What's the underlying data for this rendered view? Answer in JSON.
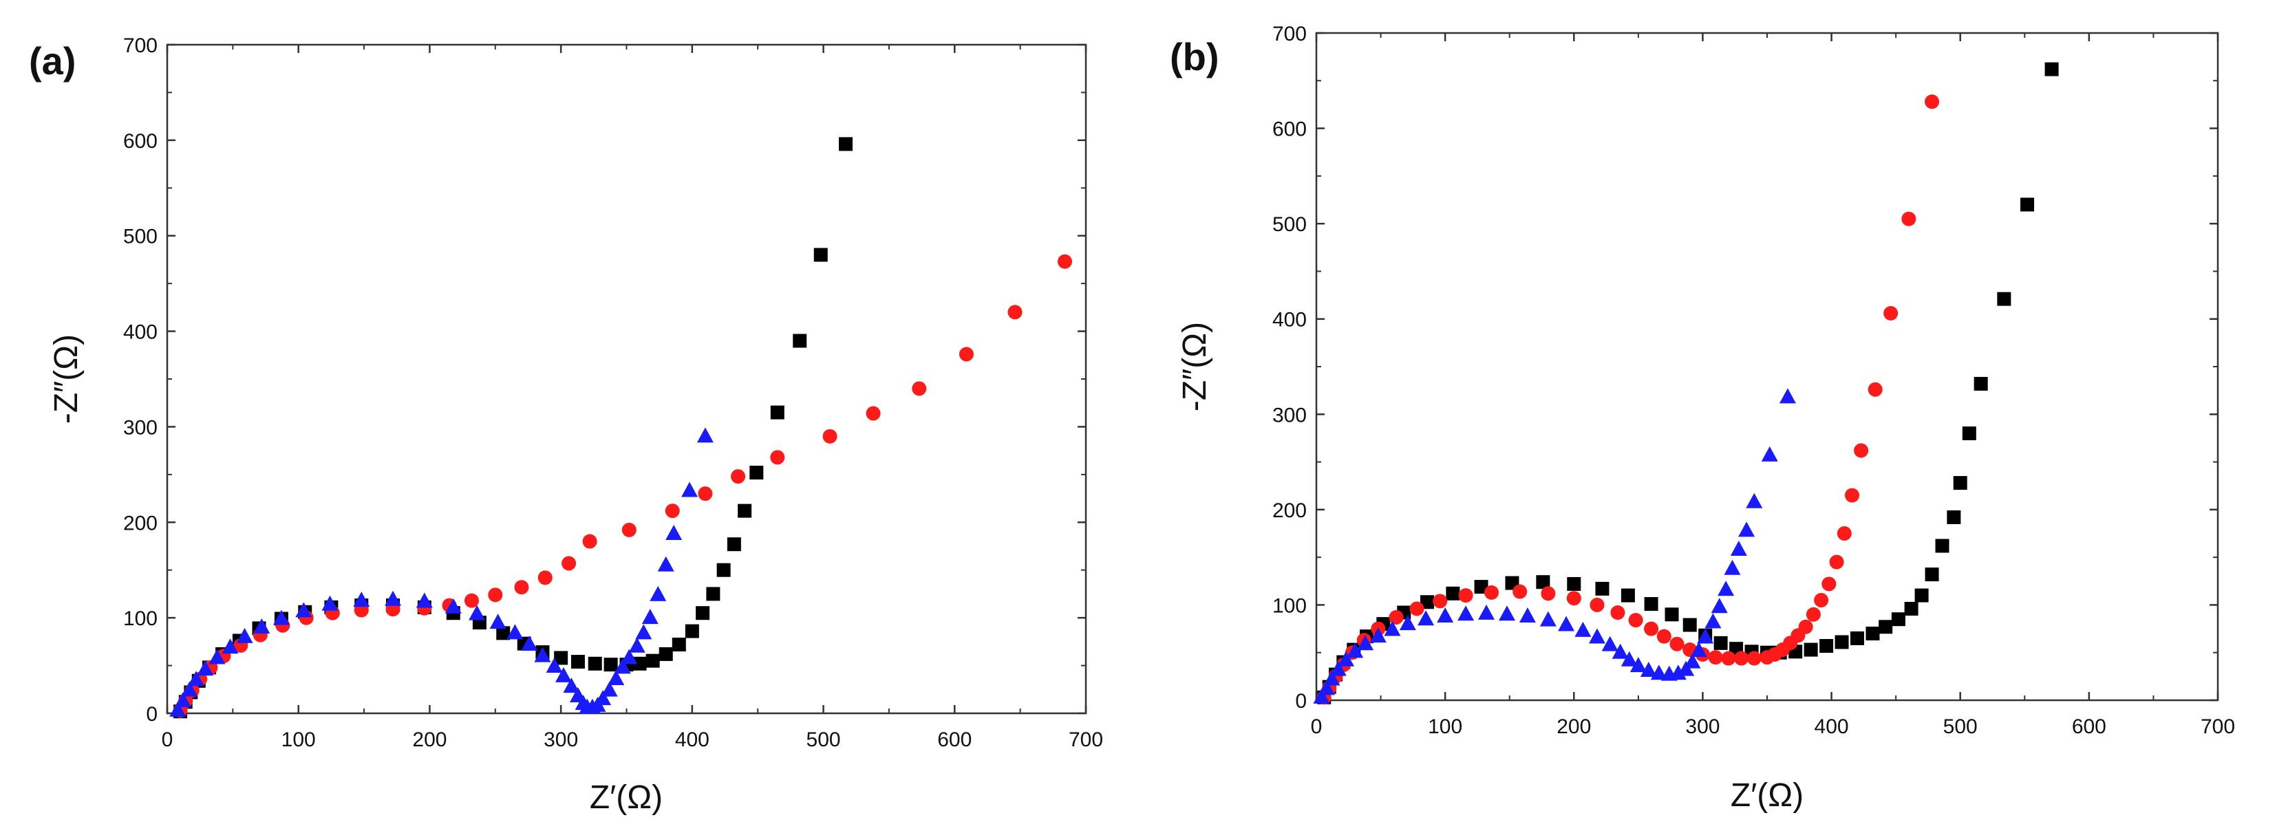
{
  "chart_data": [
    {
      "type": "scatter",
      "panel_label": "(a)",
      "xlabel": "Z′(Ω)",
      "ylabel": "-Z″(Ω)",
      "xlim": [
        0,
        700
      ],
      "ylim": [
        0,
        700
      ],
      "xticks": [
        0,
        100,
        200,
        300,
        400,
        500,
        600,
        700
      ],
      "yticks": [
        0,
        100,
        200,
        300,
        400,
        500,
        600,
        700
      ],
      "series": [
        {
          "name": "black-squares",
          "color": "#000000",
          "marker": "square",
          "points": [
            [
              10,
              2
            ],
            [
              14,
              12
            ],
            [
              18,
              22
            ],
            [
              24,
              34
            ],
            [
              32,
              48
            ],
            [
              42,
              62
            ],
            [
              55,
              76
            ],
            [
              70,
              89
            ],
            [
              87,
              99
            ],
            [
              105,
              106
            ],
            [
              125,
              111
            ],
            [
              148,
              113
            ],
            [
              172,
              113
            ],
            [
              196,
              111
            ],
            [
              218,
              105
            ],
            [
              238,
              95
            ],
            [
              256,
              84
            ],
            [
              272,
              73
            ],
            [
              286,
              64
            ],
            [
              300,
              58
            ],
            [
              313,
              54
            ],
            [
              326,
              52
            ],
            [
              338,
              51
            ],
            [
              350,
              51
            ],
            [
              360,
              52
            ],
            [
              370,
              55
            ],
            [
              380,
              62
            ],
            [
              390,
              72
            ],
            [
              400,
              86
            ],
            [
              408,
              105
            ],
            [
              416,
              125
            ],
            [
              424,
              150
            ],
            [
              432,
              177
            ],
            [
              440,
              212
            ],
            [
              449,
              252
            ],
            [
              465,
              315
            ],
            [
              482,
              390
            ],
            [
              498,
              480
            ],
            [
              517,
              596
            ]
          ]
        },
        {
          "name": "red-circles",
          "color": "#ff1a1a",
          "marker": "circle",
          "points": [
            [
              10,
              3
            ],
            [
              14,
              13
            ],
            [
              19,
              24
            ],
            [
              25,
              36
            ],
            [
              33,
              48
            ],
            [
              43,
              60
            ],
            [
              56,
              71
            ],
            [
              71,
              82
            ],
            [
              88,
              92
            ],
            [
              106,
              100
            ],
            [
              126,
              105
            ],
            [
              148,
              108
            ],
            [
              172,
              109
            ],
            [
              196,
              110
            ],
            [
              215,
              113
            ],
            [
              232,
              118
            ],
            [
              250,
              124
            ],
            [
              270,
              132
            ],
            [
              288,
              142
            ],
            [
              306,
              157
            ],
            [
              322,
              180
            ],
            [
              352,
              192
            ],
            [
              385,
              212
            ],
            [
              410,
              230
            ],
            [
              435,
              248
            ],
            [
              465,
              268
            ],
            [
              505,
              290
            ],
            [
              538,
              314
            ],
            [
              573,
              340
            ],
            [
              609,
              376
            ],
            [
              646,
              420
            ],
            [
              684,
              473
            ]
          ]
        },
        {
          "name": "blue-triangles",
          "color": "#1a1aff",
          "marker": "triangle",
          "points": [
            [
              8,
              3
            ],
            [
              12,
              13
            ],
            [
              17,
              24
            ],
            [
              22,
              35
            ],
            [
              29,
              46
            ],
            [
              38,
              58
            ],
            [
              48,
              69
            ],
            [
              59,
              80
            ],
            [
              72,
              90
            ],
            [
              87,
              99
            ],
            [
              104,
              107
            ],
            [
              124,
              114
            ],
            [
              148,
              118
            ],
            [
              172,
              119
            ],
            [
              196,
              117
            ],
            [
              218,
              111
            ],
            [
              236,
              104
            ],
            [
              252,
              95
            ],
            [
              265,
              84
            ],
            [
              276,
              72
            ],
            [
              286,
              60
            ],
            [
              295,
              49
            ],
            [
              302,
              39
            ],
            [
              308,
              28
            ],
            [
              313,
              18
            ],
            [
              317,
              10
            ],
            [
              320,
              6
            ],
            [
              324,
              6
            ],
            [
              328,
              8
            ],
            [
              332,
              15
            ],
            [
              337,
              24
            ],
            [
              342,
              36
            ],
            [
              347,
              48
            ],
            [
              352,
              58
            ],
            [
              358,
              70
            ],
            [
              363,
              84
            ],
            [
              368,
              100
            ],
            [
              374,
              124
            ],
            [
              380,
              155
            ],
            [
              386,
              188
            ],
            [
              398,
              233
            ],
            [
              410,
              290
            ]
          ]
        }
      ]
    },
    {
      "type": "scatter",
      "panel_label": "(b)",
      "xlabel": "Z′(Ω)",
      "ylabel": "-Z″(Ω)",
      "xlim": [
        0,
        700
      ],
      "ylim": [
        0,
        700
      ],
      "xticks": [
        0,
        100,
        200,
        300,
        400,
        500,
        600,
        700
      ],
      "yticks": [
        0,
        100,
        200,
        300,
        400,
        500,
        600,
        700
      ],
      "series": [
        {
          "name": "black-squares",
          "color": "#000000",
          "marker": "square",
          "points": [
            [
              6,
              3
            ],
            [
              10,
              14
            ],
            [
              15,
              27
            ],
            [
              21,
              40
            ],
            [
              29,
              53
            ],
            [
              39,
              67
            ],
            [
              52,
              80
            ],
            [
              68,
              92
            ],
            [
              86,
              103
            ],
            [
              106,
              112
            ],
            [
              128,
              119
            ],
            [
              152,
              123
            ],
            [
              176,
              124
            ],
            [
              200,
              122
            ],
            [
              222,
              117
            ],
            [
              242,
              110
            ],
            [
              260,
              101
            ],
            [
              276,
              90
            ],
            [
              290,
              79
            ],
            [
              302,
              68
            ],
            [
              314,
              60
            ],
            [
              326,
              54
            ],
            [
              338,
              51
            ],
            [
              350,
              50
            ],
            [
              360,
              50
            ],
            [
              372,
              51
            ],
            [
              384,
              53
            ],
            [
              396,
              57
            ],
            [
              408,
              61
            ],
            [
              420,
              65
            ],
            [
              432,
              70
            ],
            [
              442,
              77
            ],
            [
              452,
              85
            ],
            [
              462,
              96
            ],
            [
              470,
              110
            ],
            [
              478,
              132
            ],
            [
              486,
              162
            ],
            [
              495,
              192
            ],
            [
              500,
              228
            ],
            [
              507,
              280
            ],
            [
              516,
              332
            ],
            [
              534,
              421
            ],
            [
              552,
              520
            ],
            [
              571,
              662
            ]
          ]
        },
        {
          "name": "red-circles",
          "color": "#ff1a1a",
          "marker": "circle",
          "points": [
            [
              6,
              3
            ],
            [
              10,
              13
            ],
            [
              15,
              25
            ],
            [
              21,
              37
            ],
            [
              28,
              50
            ],
            [
              37,
              63
            ],
            [
              48,
              75
            ],
            [
              62,
              87
            ],
            [
              78,
              96
            ],
            [
              96,
              104
            ],
            [
              116,
              110
            ],
            [
              136,
              113
            ],
            [
              158,
              114
            ],
            [
              180,
              112
            ],
            [
              200,
              107
            ],
            [
              218,
              100
            ],
            [
              234,
              92
            ],
            [
              248,
              84
            ],
            [
              260,
              75
            ],
            [
              270,
              67
            ],
            [
              280,
              59
            ],
            [
              290,
              53
            ],
            [
              300,
              48
            ],
            [
              310,
              45
            ],
            [
              320,
              44
            ],
            [
              330,
              44
            ],
            [
              340,
              44
            ],
            [
              350,
              45
            ],
            [
              356,
              48
            ],
            [
              362,
              53
            ],
            [
              368,
              60
            ],
            [
              374,
              68
            ],
            [
              380,
              77
            ],
            [
              386,
              90
            ],
            [
              392,
              105
            ],
            [
              398,
              122
            ],
            [
              404,
              145
            ],
            [
              410,
              175
            ],
            [
              416,
              215
            ],
            [
              423,
              262
            ],
            [
              434,
              326
            ],
            [
              446,
              406
            ],
            [
              460,
              505
            ],
            [
              478,
              628
            ]
          ]
        },
        {
          "name": "blue-triangles",
          "color": "#1a1aff",
          "marker": "triangle",
          "points": [
            [
              4,
              3
            ],
            [
              8,
              12
            ],
            [
              12,
              22
            ],
            [
              17,
              32
            ],
            [
              23,
              42
            ],
            [
              30,
              51
            ],
            [
              38,
              59
            ],
            [
              48,
              67
            ],
            [
              59,
              74
            ],
            [
              71,
              80
            ],
            [
              85,
              85
            ],
            [
              100,
              88
            ],
            [
              116,
              90
            ],
            [
              132,
              91
            ],
            [
              148,
              90
            ],
            [
              164,
              88
            ],
            [
              180,
              84
            ],
            [
              194,
              79
            ],
            [
              207,
              73
            ],
            [
              218,
              66
            ],
            [
              228,
              58
            ],
            [
              236,
              50
            ],
            [
              243,
              42
            ],
            [
              250,
              36
            ],
            [
              258,
              31
            ],
            [
              266,
              28
            ],
            [
              274,
              27
            ],
            [
              281,
              28
            ],
            [
              287,
              32
            ],
            [
              292,
              40
            ],
            [
              297,
              52
            ],
            [
              302,
              66
            ],
            [
              308,
              82
            ],
            [
              313,
              98
            ],
            [
              318,
              116
            ],
            [
              323,
              138
            ],
            [
              328,
              158
            ],
            [
              334,
              178
            ],
            [
              340,
              208
            ],
            [
              352,
              257
            ],
            [
              366,
              318
            ]
          ]
        }
      ]
    }
  ]
}
